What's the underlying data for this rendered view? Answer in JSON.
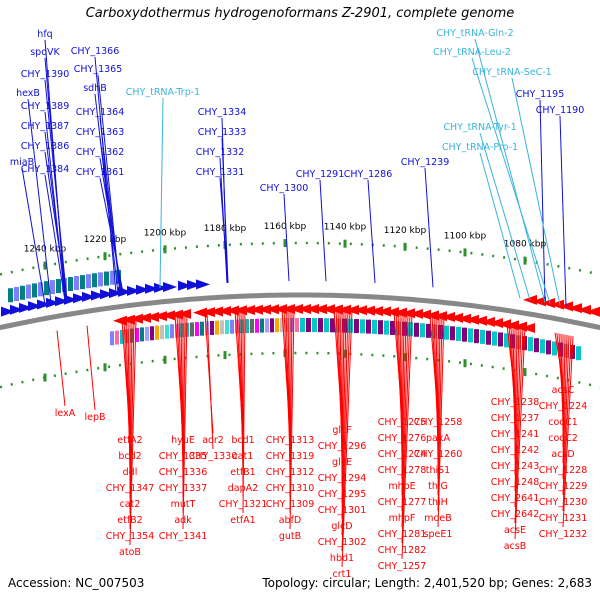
{
  "title": "Carboxydothermus hydrogenoformans Z-2901, complete genome",
  "footer": {
    "accession": "Accession: NC_007503",
    "topology": "Topology: circular; Length: 2,401,520 bp; Genes: 2,683"
  },
  "colors": {
    "forward": "#1010d8",
    "reverse": "#ff0000",
    "rna": "#3ab4dc",
    "backbone": "#888888",
    "tick": "#2f8f2f",
    "label_text": "#000000"
  },
  "scale": {
    "unit": "kbp",
    "ticks": [
      "1080 kbp",
      "1100 kbp",
      "1120 kbp",
      "1140 kbp",
      "1160 kbp",
      "1180 kbp",
      "1200 kbp",
      "1220 kbp",
      "1240 kbp"
    ]
  },
  "forward_genes": [
    "hfq",
    "spoVK",
    "CHY_1390",
    "hexB",
    "CHY_1389",
    "CHY_1387",
    "CHY_1386",
    "miaB",
    "CHY_1384",
    "CHY_1366",
    "CHY_1365",
    "sdhB",
    "CHY_1364",
    "CHY_1363",
    "CHY_1362",
    "CHY_1361",
    "CHY_1334",
    "CHY_1333",
    "CHY_1332",
    "CHY_1331",
    "CHY_1300",
    "CHY_1291",
    "CHY_1286",
    "CHY_1239",
    "CHY_1195",
    "CHY_1190"
  ],
  "rna_genes": [
    "CHY_tRNA-Trp-1",
    "CHY_tRNA-Gln-2",
    "CHY_tRNA-Leu-2",
    "CHY_tRNA-SeC-1",
    "CHY_tRNA-Tyr-1",
    "CHY_tRNA-Pro-1"
  ],
  "reverse_genes": [
    "lexA",
    "lepB",
    "etfA2",
    "bcd2",
    "ddl",
    "CHY_1347",
    "cat2",
    "etfB2",
    "CHY_1354",
    "atoB",
    "hyuE",
    "CHY_1335",
    "CHY_1336",
    "CHY_1337",
    "mutT",
    "adk",
    "CHY_1341",
    "aor2",
    "CHY_1330",
    "bcd1",
    "cat1",
    "etfB1",
    "dapA2",
    "CHY_1321",
    "etfA1",
    "CHY_1313",
    "CHY_1319",
    "CHY_1312",
    "CHY_1310",
    "CHY_1309",
    "abfD",
    "gutB",
    "glcF",
    "CHY_1296",
    "glcE",
    "CHY_1294",
    "CHY_1295",
    "CHY_1301",
    "glcD",
    "CHY_1302",
    "hbd1",
    "crt1",
    "CHY_1275",
    "CHY_1276",
    "CHY_1274",
    "CHY_1278",
    "mhpE",
    "CHY_1277",
    "mhpF",
    "CHY_1281",
    "CHY_1282",
    "CHY_1257",
    "CHY_1258",
    "paxA",
    "CHY_1260",
    "thiS1",
    "thiG",
    "thiH",
    "moeB",
    "speE1",
    "CHY_1238",
    "CHY_1237",
    "CHY_1241",
    "CHY_1242",
    "CHY_1243",
    "CHY_1248",
    "CHY_2641",
    "CHY_2642",
    "acsE",
    "acsB",
    "acsC",
    "CHY_1224",
    "cooC1",
    "cooC2",
    "acsD",
    "CHY_1228",
    "CHY_1229",
    "CHY_1230",
    "CHY_1231",
    "CHY_1232"
  ]
}
